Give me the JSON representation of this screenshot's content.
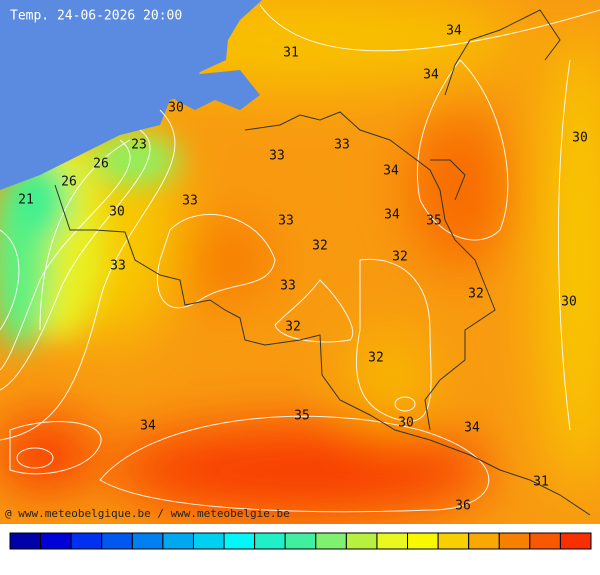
{
  "title": "Temp. 24-06-2026 20:00",
  "credit": "@ www.meteobelgique.be / www.meteobelgie.be",
  "contour_labels": [
    34,
    31,
    34,
    30,
    23,
    33,
    26,
    33,
    30,
    34,
    26,
    21,
    33,
    30,
    34,
    35,
    33,
    32,
    32,
    33,
    33,
    32,
    30,
    32,
    32,
    35,
    34,
    30,
    34,
    31,
    36
  ],
  "colorbar": [
    "#0000a8",
    "#0000d8",
    "#0030f0",
    "#0058f0",
    "#0080f0",
    "#00a8f0",
    "#00d0f0",
    "#00f8f8",
    "#20f0c8",
    "#40f0a0",
    "#80f070",
    "#b8f040",
    "#e8f820",
    "#f8f800",
    "#f8d000",
    "#f8a800",
    "#f88000",
    "#f85800",
    "#f83000"
  ]
}
